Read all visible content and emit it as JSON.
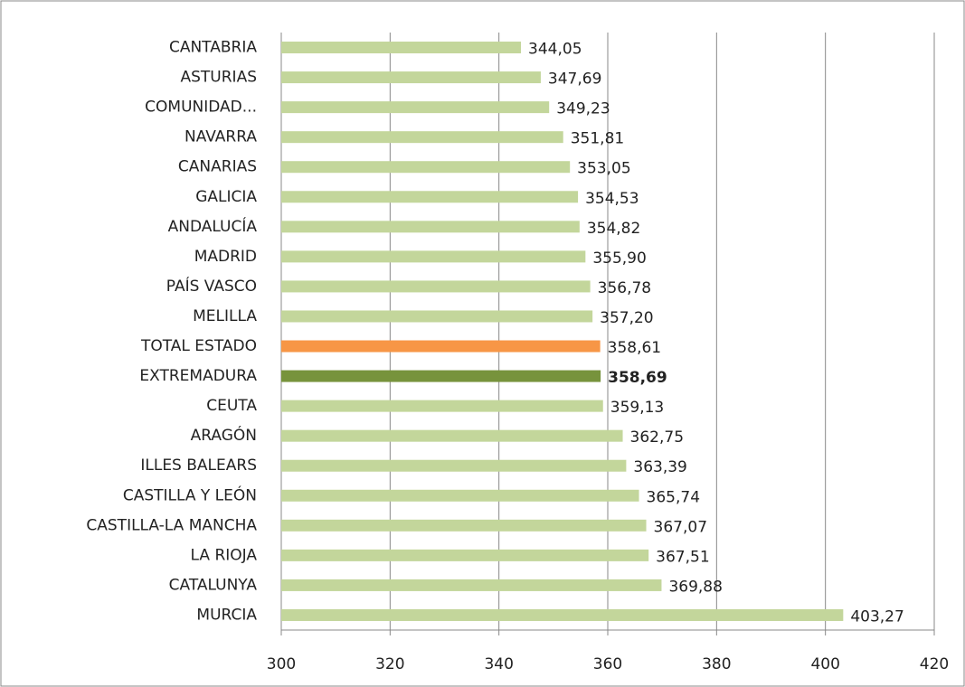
{
  "chart_data": {
    "type": "barh",
    "categories": [
      "CANTABRIA",
      "ASTURIAS",
      "COMUNIDAD...",
      "NAVARRA",
      "CANARIAS",
      "GALICIA",
      "ANDALUCÍA",
      "MADRID",
      "PAÍS VASCO",
      "MELILLA",
      "TOTAL ESTADO",
      "EXTREMADURA",
      "CEUTA",
      "ARAGÓN",
      "ILLES BALEARS",
      "CASTILLA Y LEÓN",
      "CASTILLA-LA  MANCHA",
      "LA RIOJA",
      "CATALUNYA",
      "MURCIA"
    ],
    "values": [
      344.05,
      347.69,
      349.23,
      351.81,
      353.05,
      354.53,
      354.82,
      355.9,
      356.78,
      357.2,
      358.61,
      358.69,
      359.13,
      362.75,
      363.39,
      365.74,
      367.07,
      367.51,
      369.88,
      403.27
    ],
    "value_labels": [
      "344,05",
      "347,69",
      "349,23",
      "351,81",
      "353,05",
      "354,53",
      "354,82",
      "355,90",
      "356,78",
      "357,20",
      "358,61",
      "358,69",
      "359,13",
      "362,75",
      "363,39",
      "365,74",
      "367,07",
      "367,51",
      "369,88",
      "403,27"
    ],
    "colors": [
      "#c3d69b",
      "#c3d69b",
      "#c3d69b",
      "#c3d69b",
      "#c3d69b",
      "#c3d69b",
      "#c3d69b",
      "#c3d69b",
      "#c3d69b",
      "#c3d69b",
      "#f79646",
      "#77933c",
      "#c3d69b",
      "#c3d69b",
      "#c3d69b",
      "#c3d69b",
      "#c3d69b",
      "#c3d69b",
      "#c3d69b",
      "#c3d69b"
    ],
    "bold_categories": [
      "EXTREMADURA"
    ],
    "xlim": [
      300,
      420
    ],
    "xticks": [
      300,
      320,
      340,
      360,
      380,
      400,
      420
    ],
    "grid": true
  }
}
